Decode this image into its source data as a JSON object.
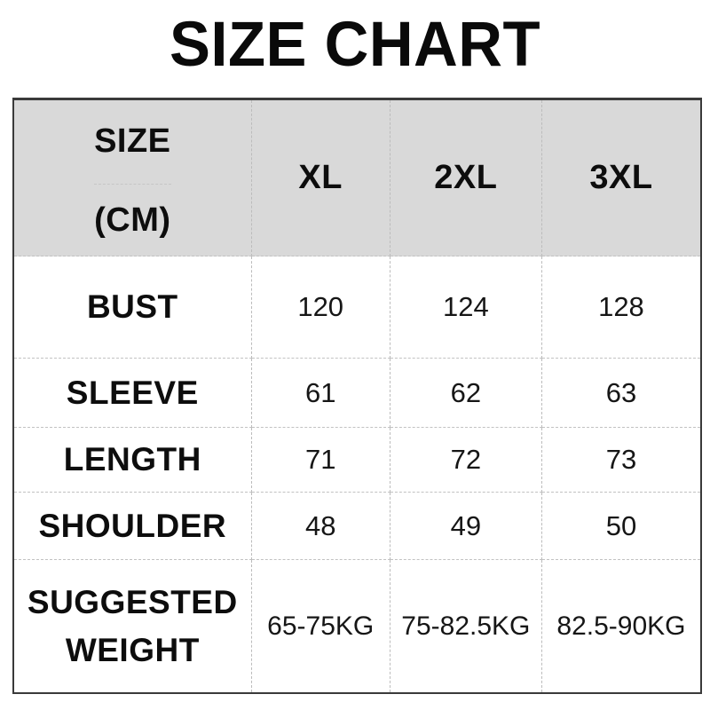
{
  "page": {
    "title": "SIZE CHART"
  },
  "header": {
    "size_label": "SIZE",
    "unit_label": "(CM)",
    "columns": [
      "XL",
      "2XL",
      "3XL"
    ]
  },
  "colors": {
    "header_bg": "#d9d9d9",
    "outer_border": "#3a3a3a",
    "grid_line": "#bcbcbc",
    "text": "#0d0d0d"
  },
  "chart_data": {
    "type": "table",
    "title": "SIZE CHART",
    "unit": "CM",
    "columns": [
      "XL",
      "2XL",
      "3XL"
    ],
    "rows": [
      {
        "label": "BUST",
        "values": [
          "120",
          "124",
          "128"
        ]
      },
      {
        "label": "SLEEVE",
        "values": [
          "61",
          "62",
          "63"
        ]
      },
      {
        "label": "LENGTH",
        "values": [
          "71",
          "72",
          "73"
        ]
      },
      {
        "label": "SHOULDER",
        "values": [
          "48",
          "49",
          "50"
        ]
      },
      {
        "label": "SUGGESTED WEIGHT",
        "values": [
          "65-75KG",
          "75-82.5KG",
          "82.5-90KG"
        ]
      }
    ]
  }
}
